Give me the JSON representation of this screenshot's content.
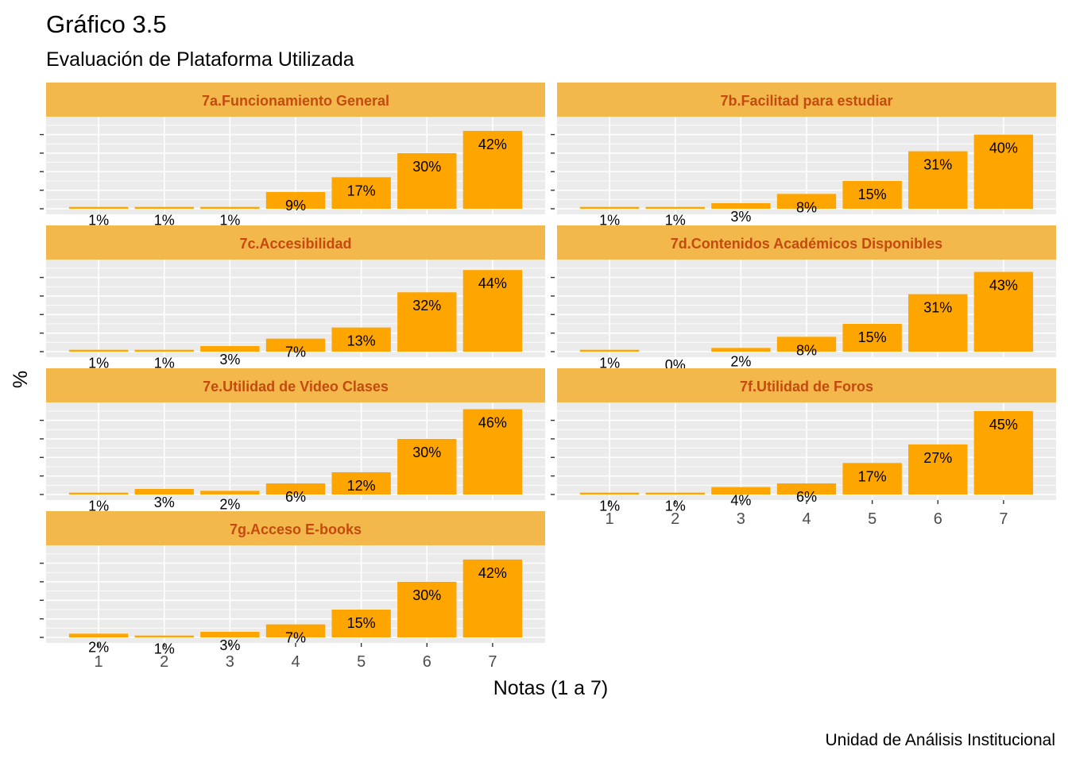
{
  "chart_data": {
    "type": "bar",
    "title": "Gráfico 3.5",
    "subtitle": "Evaluación de Plataforma Utilizada",
    "xlabel": "Notas (1 a 7)",
    "ylabel": "%",
    "caption": "Unidad de Análisis Institucional",
    "categories": [
      "1",
      "2",
      "3",
      "4",
      "5",
      "6",
      "7"
    ],
    "ylim": [
      0,
      50
    ],
    "grid": true,
    "bar_color": "#FFA500",
    "strip_color": "#F2B84B",
    "strip_text_color": "#C44A10",
    "panel_color": "#EBEBEB",
    "panels": [
      {
        "title": "7a.Funcionamiento General",
        "values": [
          1,
          1,
          1,
          9,
          17,
          30,
          42
        ],
        "labels": [
          "1%",
          "1%",
          "1%",
          "9%",
          "17%",
          "30%",
          "42%"
        ]
      },
      {
        "title": "7b.Facilitad para estudiar",
        "values": [
          1,
          1,
          3,
          8,
          15,
          31,
          40
        ],
        "labels": [
          "1%",
          "1%",
          "3%",
          "8%",
          "15%",
          "31%",
          "40%"
        ]
      },
      {
        "title": "7c.Accesibilidad",
        "values": [
          1,
          1,
          3,
          7,
          13,
          32,
          44
        ],
        "labels": [
          "1%",
          "1%",
          "3%",
          "7%",
          "13%",
          "32%",
          "44%"
        ]
      },
      {
        "title": "7d.Contenidos Académicos Disponibles",
        "values": [
          1,
          0,
          2,
          8,
          15,
          31,
          43
        ],
        "labels": [
          "1%",
          "0%",
          "2%",
          "8%",
          "15%",
          "31%",
          "43%"
        ]
      },
      {
        "title": "7e.Utilidad de Video Clases",
        "values": [
          1,
          3,
          2,
          6,
          12,
          30,
          46
        ],
        "labels": [
          "1%",
          "3%",
          "2%",
          "6%",
          "12%",
          "30%",
          "46%"
        ]
      },
      {
        "title": "7f.Utilidad de Foros",
        "values": [
          1,
          1,
          4,
          6,
          17,
          27,
          45
        ],
        "labels": [
          "1%",
          "1%",
          "4%",
          "6%",
          "17%",
          "27%",
          "45%"
        ]
      },
      {
        "title": "7g.Acceso E-books",
        "values": [
          2,
          1,
          3,
          7,
          15,
          30,
          42
        ],
        "labels": [
          "2%",
          "1%",
          "3%",
          "7%",
          "15%",
          "30%",
          "42%"
        ]
      }
    ]
  }
}
